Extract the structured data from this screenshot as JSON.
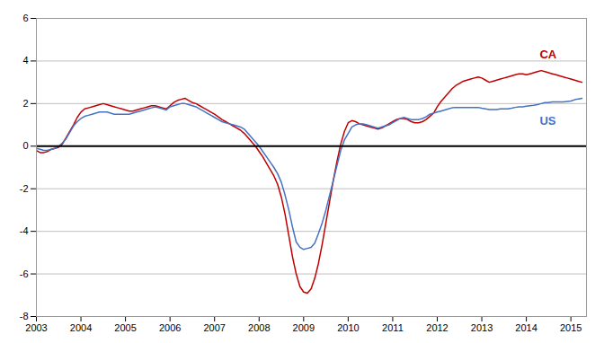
{
  "chart_data": {
    "type": "line",
    "x": [
      2003.0,
      2003.083,
      2003.167,
      2003.25,
      2003.333,
      2003.417,
      2003.5,
      2003.583,
      2003.667,
      2003.75,
      2003.833,
      2003.917,
      2004.0,
      2004.083,
      2004.167,
      2004.25,
      2004.333,
      2004.417,
      2004.5,
      2004.583,
      2004.667,
      2004.75,
      2004.833,
      2004.917,
      2005.0,
      2005.083,
      2005.167,
      2005.25,
      2005.333,
      2005.417,
      2005.5,
      2005.583,
      2005.667,
      2005.75,
      2005.833,
      2005.917,
      2006.0,
      2006.083,
      2006.167,
      2006.25,
      2006.333,
      2006.417,
      2006.5,
      2006.583,
      2006.667,
      2006.75,
      2006.833,
      2006.917,
      2007.0,
      2007.083,
      2007.167,
      2007.25,
      2007.333,
      2007.417,
      2007.5,
      2007.583,
      2007.667,
      2007.75,
      2007.833,
      2007.917,
      2008.0,
      2008.083,
      2008.167,
      2008.25,
      2008.333,
      2008.417,
      2008.5,
      2008.583,
      2008.667,
      2008.75,
      2008.833,
      2008.917,
      2009.0,
      2009.083,
      2009.167,
      2009.25,
      2009.333,
      2009.417,
      2009.5,
      2009.583,
      2009.667,
      2009.75,
      2009.833,
      2009.917,
      2010.0,
      2010.083,
      2010.167,
      2010.25,
      2010.333,
      2010.417,
      2010.5,
      2010.583,
      2010.667,
      2010.75,
      2010.833,
      2010.917,
      2011.0,
      2011.083,
      2011.167,
      2011.25,
      2011.333,
      2011.417,
      2011.5,
      2011.583,
      2011.667,
      2011.75,
      2011.833,
      2011.917,
      2012.0,
      2012.083,
      2012.167,
      2012.25,
      2012.333,
      2012.417,
      2012.5,
      2012.583,
      2012.667,
      2012.75,
      2012.833,
      2012.917,
      2013.0,
      2013.083,
      2013.167,
      2013.25,
      2013.333,
      2013.417,
      2013.5,
      2013.583,
      2013.667,
      2013.75,
      2013.833,
      2013.917,
      2014.0,
      2014.083,
      2014.167,
      2014.25,
      2014.333,
      2014.417,
      2014.5,
      2014.583,
      2014.667,
      2014.75,
      2014.833,
      2014.917,
      2015.0,
      2015.083,
      2015.167,
      2015.25
    ],
    "series": [
      {
        "name": "CA",
        "color": "#C00000",
        "values": [
          -0.2,
          -0.3,
          -0.3,
          -0.25,
          -0.15,
          -0.1,
          -0.05,
          0.1,
          0.4,
          0.7,
          1.0,
          1.35,
          1.6,
          1.75,
          1.8,
          1.85,
          1.9,
          1.95,
          2.0,
          1.95,
          1.9,
          1.85,
          1.8,
          1.75,
          1.7,
          1.65,
          1.65,
          1.7,
          1.75,
          1.8,
          1.85,
          1.9,
          1.9,
          1.85,
          1.8,
          1.75,
          1.9,
          2.05,
          2.15,
          2.2,
          2.25,
          2.15,
          2.05,
          2.0,
          1.9,
          1.8,
          1.7,
          1.6,
          1.5,
          1.38,
          1.25,
          1.15,
          1.05,
          0.95,
          0.85,
          0.75,
          0.6,
          0.4,
          0.2,
          0.0,
          -0.25,
          -0.5,
          -0.8,
          -1.1,
          -1.4,
          -1.8,
          -2.4,
          -3.2,
          -4.2,
          -5.2,
          -6.0,
          -6.6,
          -6.85,
          -6.9,
          -6.7,
          -6.2,
          -5.5,
          -4.6,
          -3.6,
          -2.6,
          -1.6,
          -0.7,
          0.1,
          0.7,
          1.1,
          1.2,
          1.15,
          1.05,
          1.0,
          0.95,
          0.9,
          0.85,
          0.8,
          0.85,
          0.95,
          1.05,
          1.15,
          1.25,
          1.3,
          1.3,
          1.25,
          1.15,
          1.1,
          1.1,
          1.15,
          1.25,
          1.4,
          1.55,
          1.85,
          2.1,
          2.3,
          2.5,
          2.7,
          2.85,
          2.95,
          3.05,
          3.1,
          3.15,
          3.2,
          3.25,
          3.2,
          3.1,
          3.0,
          3.05,
          3.1,
          3.15,
          3.2,
          3.25,
          3.3,
          3.35,
          3.4,
          3.4,
          3.35,
          3.4,
          3.45,
          3.5,
          3.55,
          3.5,
          3.45,
          3.4,
          3.35,
          3.3,
          3.25,
          3.2,
          3.15,
          3.1,
          3.05,
          3.0
        ]
      },
      {
        "name": "US",
        "color": "#4472C4",
        "values": [
          -0.1,
          -0.15,
          -0.2,
          -0.2,
          -0.15,
          -0.1,
          0.0,
          0.15,
          0.35,
          0.65,
          0.95,
          1.15,
          1.3,
          1.4,
          1.45,
          1.5,
          1.55,
          1.6,
          1.6,
          1.6,
          1.55,
          1.5,
          1.5,
          1.5,
          1.5,
          1.5,
          1.55,
          1.6,
          1.65,
          1.7,
          1.75,
          1.8,
          1.85,
          1.8,
          1.75,
          1.7,
          1.85,
          1.9,
          1.95,
          2.0,
          2.0,
          1.95,
          1.9,
          1.85,
          1.75,
          1.65,
          1.55,
          1.45,
          1.35,
          1.25,
          1.15,
          1.1,
          1.05,
          1.0,
          0.95,
          0.9,
          0.8,
          0.6,
          0.4,
          0.2,
          0.0,
          -0.25,
          -0.5,
          -0.75,
          -1.0,
          -1.3,
          -1.7,
          -2.3,
          -3.0,
          -3.8,
          -4.5,
          -4.75,
          -4.85,
          -4.8,
          -4.75,
          -4.55,
          -4.1,
          -3.6,
          -3.0,
          -2.3,
          -1.6,
          -0.9,
          -0.2,
          0.3,
          0.6,
          0.9,
          1.0,
          1.05,
          1.05,
          1.0,
          0.95,
          0.9,
          0.85,
          0.9,
          0.95,
          1.0,
          1.1,
          1.2,
          1.3,
          1.35,
          1.3,
          1.25,
          1.25,
          1.25,
          1.3,
          1.38,
          1.5,
          1.55,
          1.6,
          1.65,
          1.7,
          1.75,
          1.8,
          1.82,
          1.82,
          1.82,
          1.82,
          1.82,
          1.82,
          1.82,
          1.78,
          1.75,
          1.72,
          1.72,
          1.72,
          1.75,
          1.75,
          1.75,
          1.78,
          1.82,
          1.85,
          1.85,
          1.88,
          1.9,
          1.92,
          1.95,
          2.0,
          2.05,
          2.05,
          2.08,
          2.08,
          2.08,
          2.08,
          2.1,
          2.12,
          2.18,
          2.22,
          2.25
        ]
      }
    ],
    "xlim": [
      2003.0,
      2015.35
    ],
    "xticks": [
      2003,
      2004,
      2005,
      2006,
      2007,
      2008,
      2009,
      2010,
      2011,
      2012,
      2013,
      2014,
      2015
    ],
    "ylim": [
      -8,
      6
    ],
    "yticks": [
      -8,
      -6,
      -4,
      -2,
      0,
      2,
      4,
      6
    ],
    "grid": true,
    "annotations": [
      {
        "text": "CA",
        "x": 2014.3,
        "y": 4.3,
        "color": "#C00000"
      },
      {
        "text": "US",
        "x": 2014.3,
        "y": 1.2,
        "color": "#4472C4"
      }
    ]
  }
}
